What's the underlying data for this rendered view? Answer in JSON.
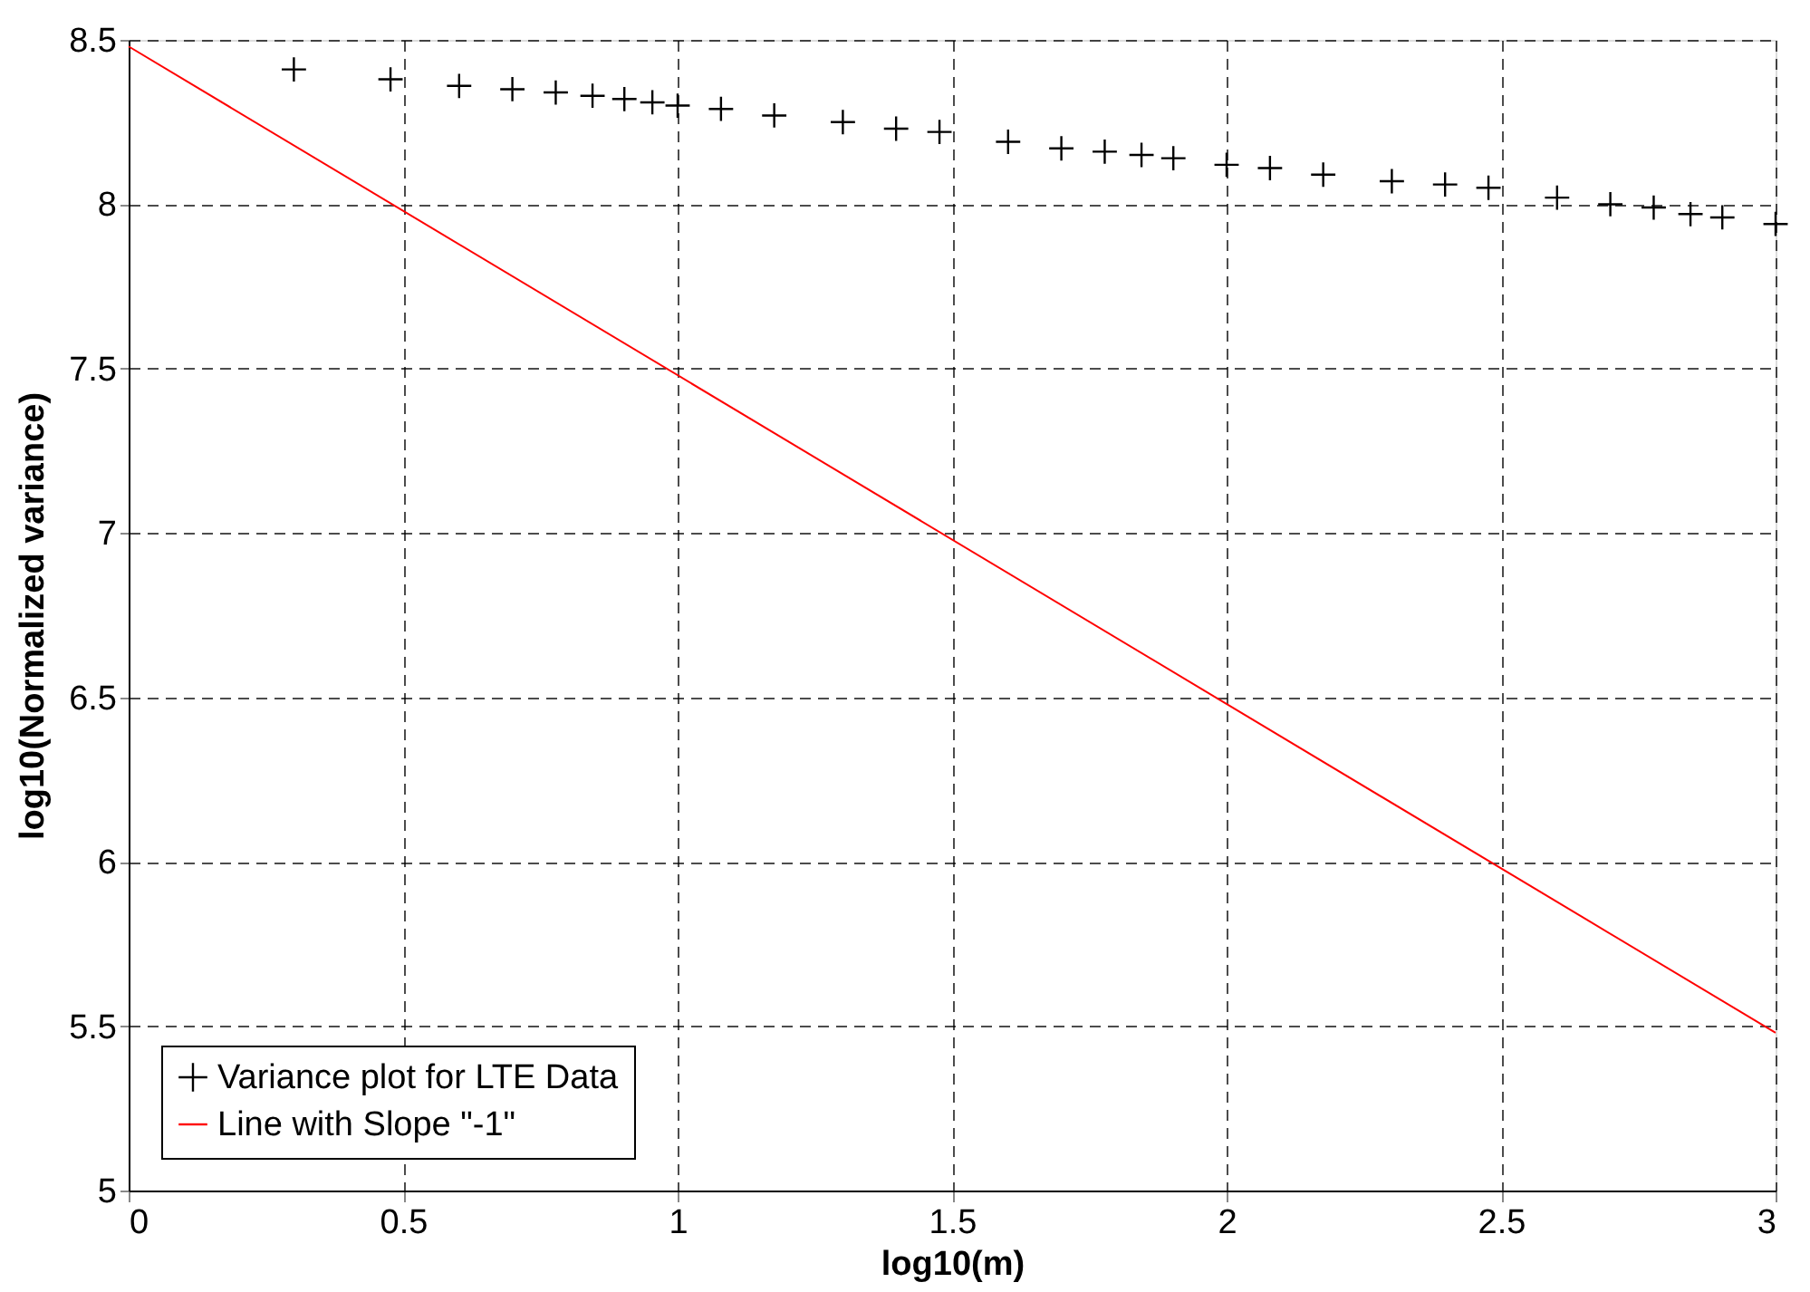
{
  "chart_data": {
    "type": "scatter",
    "xlabel": "log10(m)",
    "ylabel": "log10(Normalized variance)",
    "xlim": [
      0,
      3
    ],
    "xticks": [
      0,
      0.5,
      1,
      1.5,
      2,
      2.5,
      3
    ],
    "ylim": [
      5,
      8.5
    ],
    "yticks": [
      5,
      5.5,
      6,
      6.5,
      7,
      7.5,
      8,
      8.5
    ],
    "grid": true,
    "legend": "bottom left",
    "series": [
      {
        "name": "Variance plot for LTE Data",
        "marker": "cross",
        "color": "#000000",
        "x": [
          0.301,
          0.477,
          0.602,
          0.699,
          0.778,
          0.845,
          0.903,
          0.954,
          1,
          1.079,
          1.176,
          1.301,
          1.398,
          1.477,
          1.602,
          1.699,
          1.778,
          1.845,
          1.903,
          2,
          2.079,
          2.176,
          2.301,
          2.398,
          2.477,
          2.602,
          2.699,
          2.778,
          2.845,
          2.903,
          3
        ],
        "values": [
          8.41,
          8.38,
          8.36,
          8.35,
          8.34,
          8.33,
          8.32,
          8.31,
          8.3,
          8.29,
          8.27,
          8.25,
          8.23,
          8.22,
          8.19,
          8.17,
          8.16,
          8.15,
          8.14,
          8.12,
          8.11,
          8.09,
          8.07,
          8.06,
          8.05,
          8.02,
          8.0,
          7.99,
          7.97,
          7.96,
          7.94
        ]
      },
      {
        "name": "Line with Slope \"-1\"",
        "type": "line",
        "marker": "none",
        "line_style": "solid",
        "color": "#ff0000",
        "x": [
          0,
          3
        ],
        "values": [
          8.48,
          5.48
        ]
      }
    ]
  }
}
